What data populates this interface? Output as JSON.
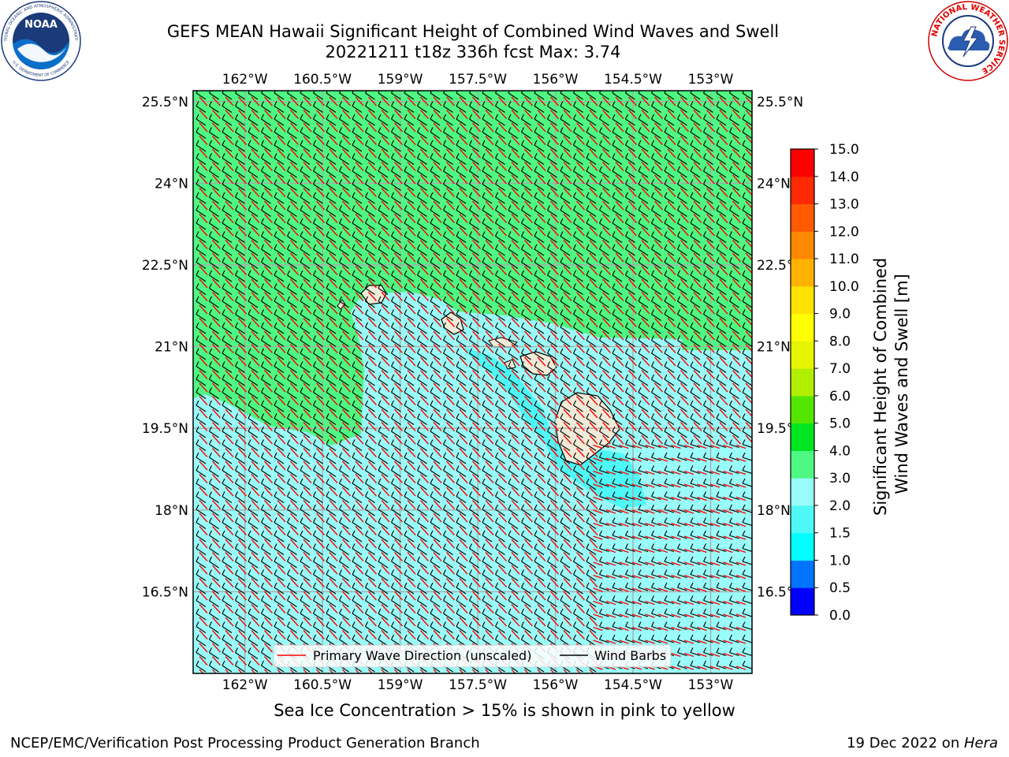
{
  "title": {
    "line1": "GEFS MEAN Hawaii Significant Height of Combined Wind Waves and Swell",
    "line2": "20221211 t18z 336h fcst   Max: 3.74"
  },
  "map": {
    "lon_labels": [
      "162°W",
      "160.5°W",
      "159°W",
      "157.5°W",
      "156°W",
      "154.5°W",
      "153°W"
    ],
    "lat_labels": [
      "25.5°N",
      "24°N",
      "22.5°N",
      "21°N",
      "19.5°N",
      "18°N",
      "16.5°N"
    ],
    "lon_values": [
      -162,
      -160.5,
      -159,
      -157.5,
      -156,
      -154.5,
      -153
    ],
    "lat_values": [
      25.5,
      24,
      22.5,
      21,
      19.5,
      18,
      16.5
    ],
    "lon_range": [
      -163,
      -152.2
    ],
    "lat_range": [
      15,
      25.7
    ],
    "ocean_high_color": "#4ef882",
    "ocean_mid_color": "#99fcf8",
    "ocean_low_color": "#4ef8f6",
    "land_color": "#efebd8",
    "wave_dir_color": "#ff0000",
    "barb_color": "#000000"
  },
  "legend": {
    "wave_label": "Primary Wave Direction (unscaled)",
    "barb_label": "Wind Barbs"
  },
  "colorbar": {
    "label_line1": "Significant Height of Combined",
    "label_line2": "Wind Waves and Swell [m]",
    "ticks": [
      "0.0",
      "0.5",
      "1.0",
      "1.5",
      "2.0",
      "3.0",
      "4.0",
      "5.0",
      "6.0",
      "7.0",
      "8.0",
      "9.0",
      "10.0",
      "11.0",
      "12.0",
      "13.0",
      "14.0",
      "15.0"
    ],
    "colors": [
      "#0000ff",
      "#0073ff",
      "#00ffff",
      "#4ef8f6",
      "#99fcf8",
      "#4ef882",
      "#00e61f",
      "#55e600",
      "#b2ee00",
      "#e6f400",
      "#ffff00",
      "#ffe100",
      "#ffb300",
      "#ff8800",
      "#ff5a00",
      "#ff2a00",
      "#ff0000"
    ]
  },
  "footnote": "Sea Ice Concentration > 15% is shown in pink to yellow",
  "credit_left": "NCEP/EMC/Verification Post Processing Product Generation Branch",
  "credit_date": "19 Dec 2022 on ",
  "credit_host": "Hera",
  "logos": {
    "noaa_text": "NOAA",
    "noaa_ring": "NATIONAL OCEANIC AND ATMOSPHERIC ADMINISTRATION",
    "noaa_ring_bottom": "U.S. DEPARTMENT OF COMMERCE",
    "nws_ring": "NATIONAL WEATHER SERVICE"
  }
}
